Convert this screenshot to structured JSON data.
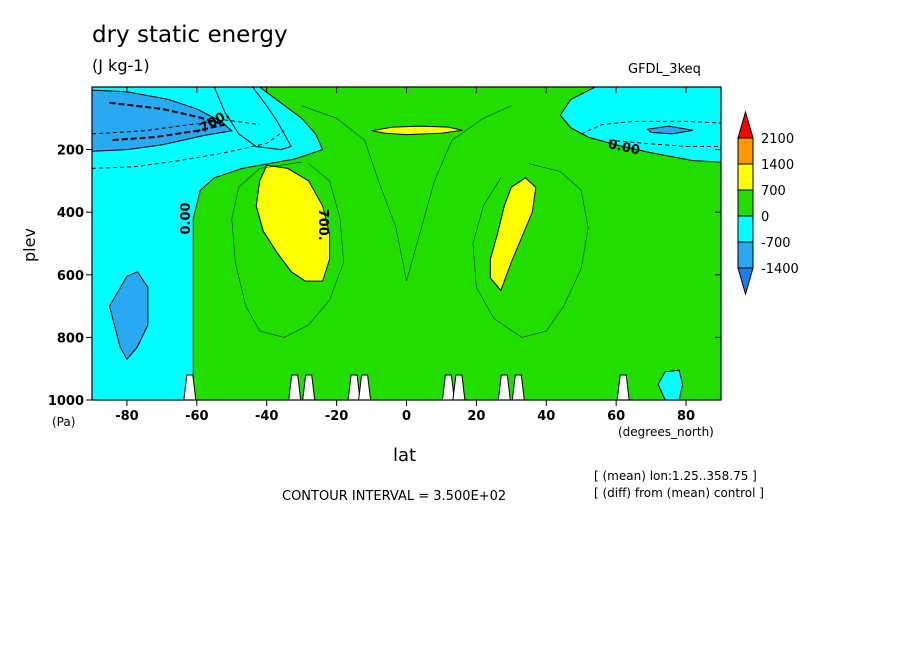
{
  "header": {
    "title": "dry static energy",
    "units": "(J kg-1)",
    "dataset": "GFDL_3keq"
  },
  "footer": {
    "contour_interval": "CONTOUR INTERVAL = 3.500E+02",
    "note_mean": "[ (mean) lon:1.25..358.75 ]",
    "note_diff": "[ (diff) from (mean) control ]"
  },
  "chart_data": {
    "type": "heatmap",
    "title": "dry static energy",
    "xlabel": "lat",
    "ylabel": "plev",
    "x_unit": "(degrees_north)",
    "y_unit": "(Pa)",
    "xlim": [
      -90,
      90
    ],
    "ylim": [
      1000,
      0
    ],
    "x_ticks": [
      -80,
      -60,
      -40,
      -20,
      0,
      20,
      40,
      60,
      80
    ],
    "y_ticks": [
      200,
      400,
      600,
      800,
      1000
    ],
    "colorbar": {
      "levels": [
        -2100,
        -1400,
        -700,
        0,
        700,
        1400,
        2100
      ],
      "labels": [
        "2100",
        "1400",
        "700",
        "0",
        "-700",
        "-1400"
      ],
      "colors": {
        "lt_m1400": "#1a7df0",
        "m1400_m700": "#2aa9f3",
        "m700_0": "#00ffff",
        "0_700": "#22dd00",
        "700_1400": "#ffff00",
        "1400_2100": "#ff9900",
        "gt_2100": "#ff0000"
      }
    },
    "contour_labels": [
      "-700.",
      "0.00",
      "0.00",
      "700."
    ],
    "contour_interval": 350,
    "regions": [
      {
        "level": "m700_0",
        "outline": [
          [
            -90,
            0
          ],
          [
            -60,
            0
          ],
          [
            -42,
            0
          ],
          [
            -36,
            50
          ],
          [
            -30,
            100
          ],
          [
            -26,
            150
          ],
          [
            -24,
            200
          ],
          [
            -32,
            230
          ],
          [
            -47,
            260
          ],
          [
            -55,
            290
          ],
          [
            -59,
            330
          ],
          [
            -61,
            420
          ],
          [
            -61,
            1000
          ],
          [
            -90,
            1000
          ]
        ]
      },
      {
        "level": "m700_0",
        "outline": [
          [
            -55,
            0
          ],
          [
            -44,
            0
          ],
          [
            -40,
            60
          ],
          [
            -37,
            110
          ],
          [
            -35,
            150
          ],
          [
            -33,
            190
          ],
          [
            -36,
            200
          ],
          [
            -43,
            190
          ],
          [
            -48,
            150
          ],
          [
            -52,
            80
          ]
        ]
      },
      {
        "level": "m700_0",
        "outline": [
          [
            90,
            0
          ],
          [
            54,
            0
          ],
          [
            47,
            40
          ],
          [
            44,
            90
          ],
          [
            47,
            130
          ],
          [
            52,
            160
          ],
          [
            60,
            185
          ],
          [
            70,
            210
          ],
          [
            82,
            235
          ],
          [
            90,
            240
          ]
        ]
      },
      {
        "level": "m1400_m700",
        "outline": [
          [
            -90,
            10
          ],
          [
            -80,
            15
          ],
          [
            -68,
            40
          ],
          [
            -60,
            70
          ],
          [
            -53,
            110
          ],
          [
            -50,
            140
          ],
          [
            -58,
            155
          ],
          [
            -70,
            185
          ],
          [
            -80,
            200
          ],
          [
            -90,
            205
          ]
        ]
      },
      {
        "level": "m1400_m700",
        "outline": [
          [
            -80,
            605
          ],
          [
            -77,
            590
          ],
          [
            -74,
            640
          ],
          [
            -74,
            760
          ],
          [
            -77,
            830
          ],
          [
            -80,
            870
          ],
          [
            -82,
            830
          ],
          [
            -85,
            700
          ]
        ]
      },
      {
        "level": "m1400_m700",
        "outline": [
          [
            69,
            135
          ],
          [
            75,
            125
          ],
          [
            82,
            138
          ],
          [
            76,
            150
          ],
          [
            70,
            145
          ]
        ]
      },
      {
        "level": "700_1400",
        "outline": [
          [
            -40,
            250
          ],
          [
            -34,
            260
          ],
          [
            -28,
            300
          ],
          [
            -24,
            380
          ],
          [
            -22,
            470
          ],
          [
            -22,
            550
          ],
          [
            -24,
            620
          ],
          [
            -29,
            620
          ],
          [
            -33,
            590
          ],
          [
            -37,
            530
          ],
          [
            -41,
            460
          ],
          [
            -43,
            380
          ],
          [
            -42,
            300
          ]
        ]
      },
      {
        "level": "700_1400",
        "outline": [
          [
            27,
            650
          ],
          [
            24,
            610
          ],
          [
            24,
            550
          ],
          [
            26,
            470
          ],
          [
            28,
            380
          ],
          [
            30,
            320
          ],
          [
            34,
            290
          ],
          [
            37,
            320
          ],
          [
            36,
            400
          ],
          [
            33,
            480
          ],
          [
            30,
            560
          ],
          [
            28,
            620
          ]
        ]
      },
      {
        "level": "700_1400",
        "outline": [
          [
            -10,
            140
          ],
          [
            -4,
            128
          ],
          [
            4,
            125
          ],
          [
            12,
            128
          ],
          [
            16,
            138
          ],
          [
            10,
            148
          ],
          [
            0,
            152
          ],
          [
            -6,
            148
          ]
        ]
      },
      {
        "level": "m700_0",
        "outline": [
          [
            74,
            1000
          ],
          [
            72,
            950
          ],
          [
            74,
            910
          ],
          [
            78,
            905
          ],
          [
            79,
            950
          ],
          [
            78,
            1000
          ]
        ]
      }
    ],
    "topography_peaks_lat": [
      -62,
      -32,
      -28,
      -15,
      -12,
      12,
      15,
      28,
      32,
      62
    ]
  }
}
